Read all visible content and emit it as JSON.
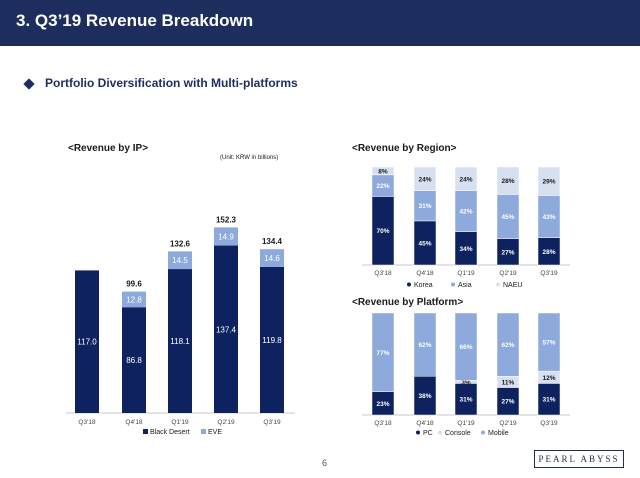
{
  "header": {
    "title": "3. Q3’19 Revenue Breakdown"
  },
  "section": {
    "subtitle": "Portfolio Diversification with Multi-platforms"
  },
  "page_number": "6",
  "logo_text": "PEARL ABYSS",
  "colors": {
    "header": "#1d2d5e",
    "dark": "#0f2260",
    "light": "#8ea9db",
    "lighter": "#d6e0f0",
    "grid": "#cccccc"
  },
  "ip_panel": {
    "title": "<Revenue by IP>",
    "unit": "(Unit: KRW in billions)"
  },
  "region_panel": {
    "title": "<Revenue by Region>"
  },
  "platform_panel": {
    "title": "<Revenue by Platform>"
  },
  "chart_data": [
    {
      "type": "bar",
      "stacked": true,
      "title": "<Revenue by IP>",
      "categories": [
        "Q3'18",
        "Q4'18",
        "Q1'19",
        "Q2'19",
        "Q3'19"
      ],
      "series": [
        {
          "name": "Black Desert",
          "color": "#0f2260",
          "values": [
            117.0,
            86.8,
            118.1,
            137.4,
            119.8
          ],
          "labels": [
            "117.0",
            "86.8",
            "118.1",
            "137.4",
            "119.8"
          ]
        },
        {
          "name": "EVE",
          "color": "#8ea9db",
          "values": [
            0,
            12.8,
            14.5,
            14.9,
            14.6
          ],
          "labels": [
            "",
            "12.8",
            "14.5",
            "14.9",
            "14.6"
          ]
        }
      ],
      "totals": [
        "",
        "99.6",
        "132.6",
        "152.3",
        "134.4"
      ],
      "ylim": [
        0,
        160
      ],
      "legend": "bottom"
    },
    {
      "type": "bar",
      "stacked": true,
      "percent": true,
      "title": "<Revenue by Region>",
      "categories": [
        "Q3'18",
        "Q4'18",
        "Q1'19",
        "Q2'19",
        "Q3'19"
      ],
      "series": [
        {
          "name": "Korea",
          "color": "#0f2260",
          "values": [
            70,
            45,
            34,
            27,
            28
          ]
        },
        {
          "name": "Asia",
          "color": "#8ea9db",
          "values": [
            22,
            31,
            42,
            45,
            43
          ]
        },
        {
          "name": "NAEU",
          "color": "#d6e0f0",
          "values": [
            8,
            24,
            24,
            28,
            29
          ]
        }
      ],
      "legend": "bottom"
    },
    {
      "type": "bar",
      "stacked": true,
      "percent": true,
      "title": "<Revenue by Platform>",
      "categories": [
        "Q3'18",
        "Q4'18",
        "Q1'19",
        "Q2'19",
        "Q3'19"
      ],
      "series": [
        {
          "name": "PC",
          "color": "#0f2260",
          "values": [
            23,
            38,
            31,
            27,
            31
          ]
        },
        {
          "name": "Console",
          "color": "#d6e0f0",
          "values": [
            0,
            0,
            3,
            11,
            12
          ]
        },
        {
          "name": "Mobile",
          "color": "#8ea9db",
          "values": [
            77,
            62,
            66,
            62,
            57
          ]
        }
      ],
      "legend": "bottom"
    }
  ]
}
